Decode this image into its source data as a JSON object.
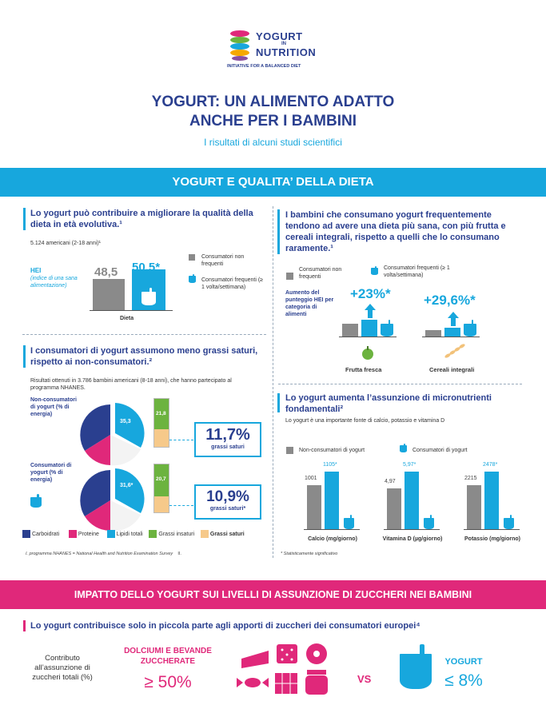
{
  "logo": {
    "line1": "YOGURT",
    "in": "IN",
    "line2": "NUTRITION",
    "tagline": "INITIATIVE FOR A BALANCED DIET"
  },
  "title": {
    "line1": "YOGURT: UN ALIMENTO ADATTO",
    "line2": "ANCHE PER I BAMBINI",
    "subtitle": "I risultati di alcuni studi scientifici"
  },
  "banner1": "YOGURT E QUALITA’ DELLA DIETA",
  "hei": {
    "heading": "Lo yogurt può contribuire a migliorare la qualità della dieta in età evolutiva.¹",
    "sample": "5.124 americani (2-18 anni)¹",
    "label": "HEI",
    "label_sub": "(indice di una sana alimentazione)",
    "value_non": "48,5",
    "value_cons": "50,5*",
    "v_non": 48.5,
    "v_cons": 50.5,
    "legend_non": "Consumatori non frequenti",
    "legend_cons": "Consumatori frequenti (≥ 1 volta/settimana)",
    "xlabel": "Dieta"
  },
  "fat": {
    "heading": "I consumatori di yogurt assumono meno grassi saturi, rispetto ai non-consumatori.²",
    "sample": "Risultati ottenuti in 3.786 bambini americani (8-18 anni), che hanno partecipato al programma NHANES.",
    "non_label": "Non-consumatori di yogurt (% di energia)",
    "cons_label": "Consumatori di yogurt (% di energia)",
    "non_lipidi": "35,3",
    "non_insat": "21,8",
    "cons_lipidi": "31,6*",
    "cons_insat": "20,7",
    "non_sat_value": "11,7%",
    "non_sat_label": "grassi saturi",
    "cons_sat_value": "10,9%",
    "cons_sat_label": "grassi saturi*",
    "legend": [
      "Carboidrati",
      "Proteine",
      "Lipidi totali",
      "Grassi insaturi",
      "Grassi saturi"
    ]
  },
  "fruit": {
    "heading": "I bambini che consumano yogurt frequentemente tendono ad avere una dieta più sana, con più frutta e cereali integrali, rispetto a quelli che lo consumano raramente.¹",
    "legend_non": "Consumatori non frequenti",
    "legend_cons": "Consumatori frequenti (≥ 1 volta/settimana)",
    "side_label": "Aumento del punteggio HEI per categoria di alimenti",
    "fruit_pct": "+23%*",
    "cereal_pct": "+29,6%*",
    "fruit_label": "Frutta fresca",
    "cereal_label": "Cereali integrali"
  },
  "micro": {
    "heading": "Lo yogurt aumenta l’assunzione di micronutrienti fondamentali²",
    "sub": "Lo yogurt è una importante fonte di calcio, potassio e vitamina D",
    "legend_non": "Non-consumatori di yogurt",
    "legend_cons": "Consumatori di yogurt",
    "groups": [
      {
        "label": "Calcio (mg/giorno)",
        "non": "1001",
        "cons": "1105*",
        "v_non": 1001,
        "v_cons": 1105
      },
      {
        "label": "Vitamina D (µg/giorno)",
        "non": "4,97",
        "cons": "5,97*",
        "v_non": 4.97,
        "v_cons": 5.97
      },
      {
        "label": "Potassio (mg/giorno)",
        "non": "2215",
        "cons": "2478*",
        "v_non": 2215,
        "v_cons": 2478
      }
    ]
  },
  "footnote_left": "I. programma NHANES = National Health and Nutrition Examination Survey",
  "footnote_left_ii": "II.",
  "footnote_right": "* Statisticamente significativo",
  "banner2": "IMPATTO DELLO YOGURT SUI LIVELLI DI ASSUNZIONE DI ZUCCHERI NEI BAMBINI",
  "sugar": {
    "heading": "Lo yogurt contribuisce solo in piccola parte agli apporti di zuccheri dei consumatori europei⁴",
    "left_label": "Contributo all’assunzione di zuccheri totali (%)",
    "sweets_label": "DOLCIUMI E BEVANDE ZUCCHERATE",
    "sweets_value": "≥ 50%",
    "vs": "VS",
    "yogurt_label": "YOGURT",
    "yogurt_value": "≤ 8%"
  },
  "colors": {
    "navy": "#2a3f8f",
    "cyan": "#17a7dd",
    "pink": "#e0287a",
    "grey": "#8a8a8a",
    "green": "#6cb33f",
    "sand": "#f6c98a"
  }
}
